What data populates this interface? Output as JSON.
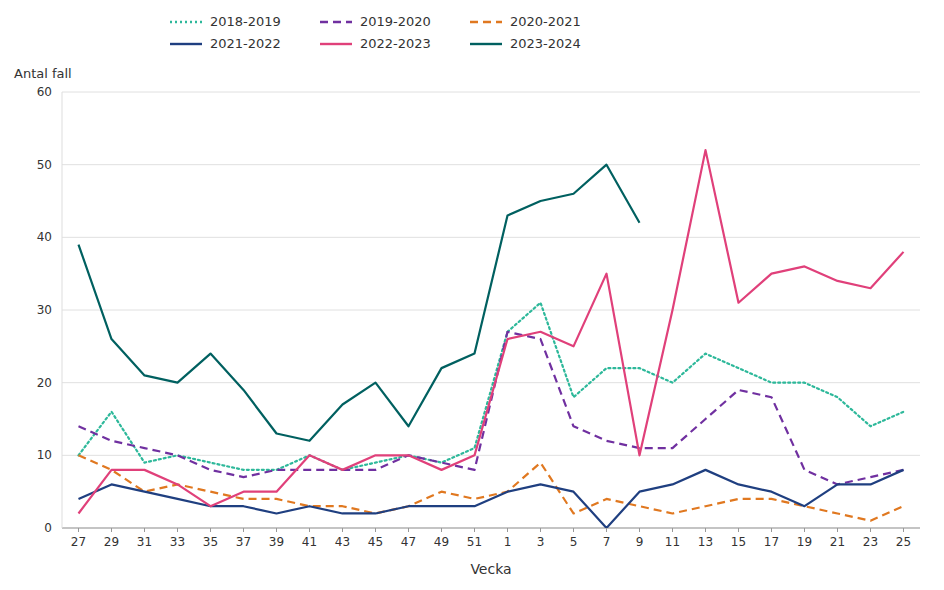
{
  "chart_data": {
    "type": "line",
    "x_label": "Vecka",
    "y_label": "Antal fall",
    "categories": [
      "27",
      "29",
      "31",
      "33",
      "35",
      "37",
      "39",
      "41",
      "43",
      "45",
      "47",
      "49",
      "51",
      "1",
      "3",
      "5",
      "7",
      "9",
      "11",
      "13",
      "15",
      "17",
      "19",
      "21",
      "23",
      "25"
    ],
    "ylim": [
      0,
      60
    ],
    "yticks": [
      0,
      10,
      20,
      30,
      40,
      50,
      60
    ],
    "grid": true,
    "legend": "top",
    "series": [
      {
        "name": "2018-2019",
        "color": "#2db89a",
        "line_style": "dotted",
        "values": [
          10,
          16,
          9,
          10,
          9,
          8,
          8,
          10,
          8,
          9,
          10,
          9,
          11,
          27,
          31,
          18,
          22,
          22,
          20,
          24,
          22,
          20,
          20,
          18,
          14,
          16
        ]
      },
      {
        "name": "2019-2020",
        "color": "#7030a0",
        "line_style": "dashed",
        "values": [
          14,
          12,
          11,
          10,
          8,
          7,
          8,
          8,
          8,
          8,
          10,
          9,
          8,
          27,
          26,
          14,
          12,
          11,
          11,
          15,
          19,
          18,
          8,
          6,
          7,
          8
        ]
      },
      {
        "name": "2020-2021",
        "color": "#e07820",
        "line_style": "dashed",
        "values": [
          10,
          8,
          5,
          6,
          5,
          4,
          4,
          3,
          3,
          2,
          3,
          5,
          4,
          5,
          9,
          2,
          4,
          3,
          2,
          3,
          4,
          4,
          3,
          2,
          1,
          3
        ]
      },
      {
        "name": "2021-2022",
        "color": "#1f3f80",
        "line_style": "solid",
        "values": [
          4,
          6,
          5,
          4,
          3,
          3,
          2,
          3,
          2,
          2,
          3,
          3,
          3,
          5,
          6,
          5,
          0,
          5,
          6,
          8,
          6,
          5,
          3,
          6,
          6,
          8
        ]
      },
      {
        "name": "2022-2023",
        "color": "#e0407a",
        "line_style": "solid",
        "values": [
          2,
          8,
          8,
          6,
          3,
          5,
          5,
          10,
          8,
          10,
          10,
          8,
          10,
          26,
          27,
          25,
          35,
          10,
          30,
          52,
          31,
          35,
          36,
          34,
          33,
          38
        ]
      },
      {
        "name": "2023-2024",
        "color": "#006060",
        "line_style": "solid",
        "values": [
          39,
          26,
          21,
          20,
          24,
          19,
          13,
          12,
          17,
          20,
          14,
          22,
          24,
          43,
          45,
          46,
          50,
          42,
          null,
          null,
          null,
          null,
          null,
          null,
          null,
          null
        ]
      }
    ]
  }
}
